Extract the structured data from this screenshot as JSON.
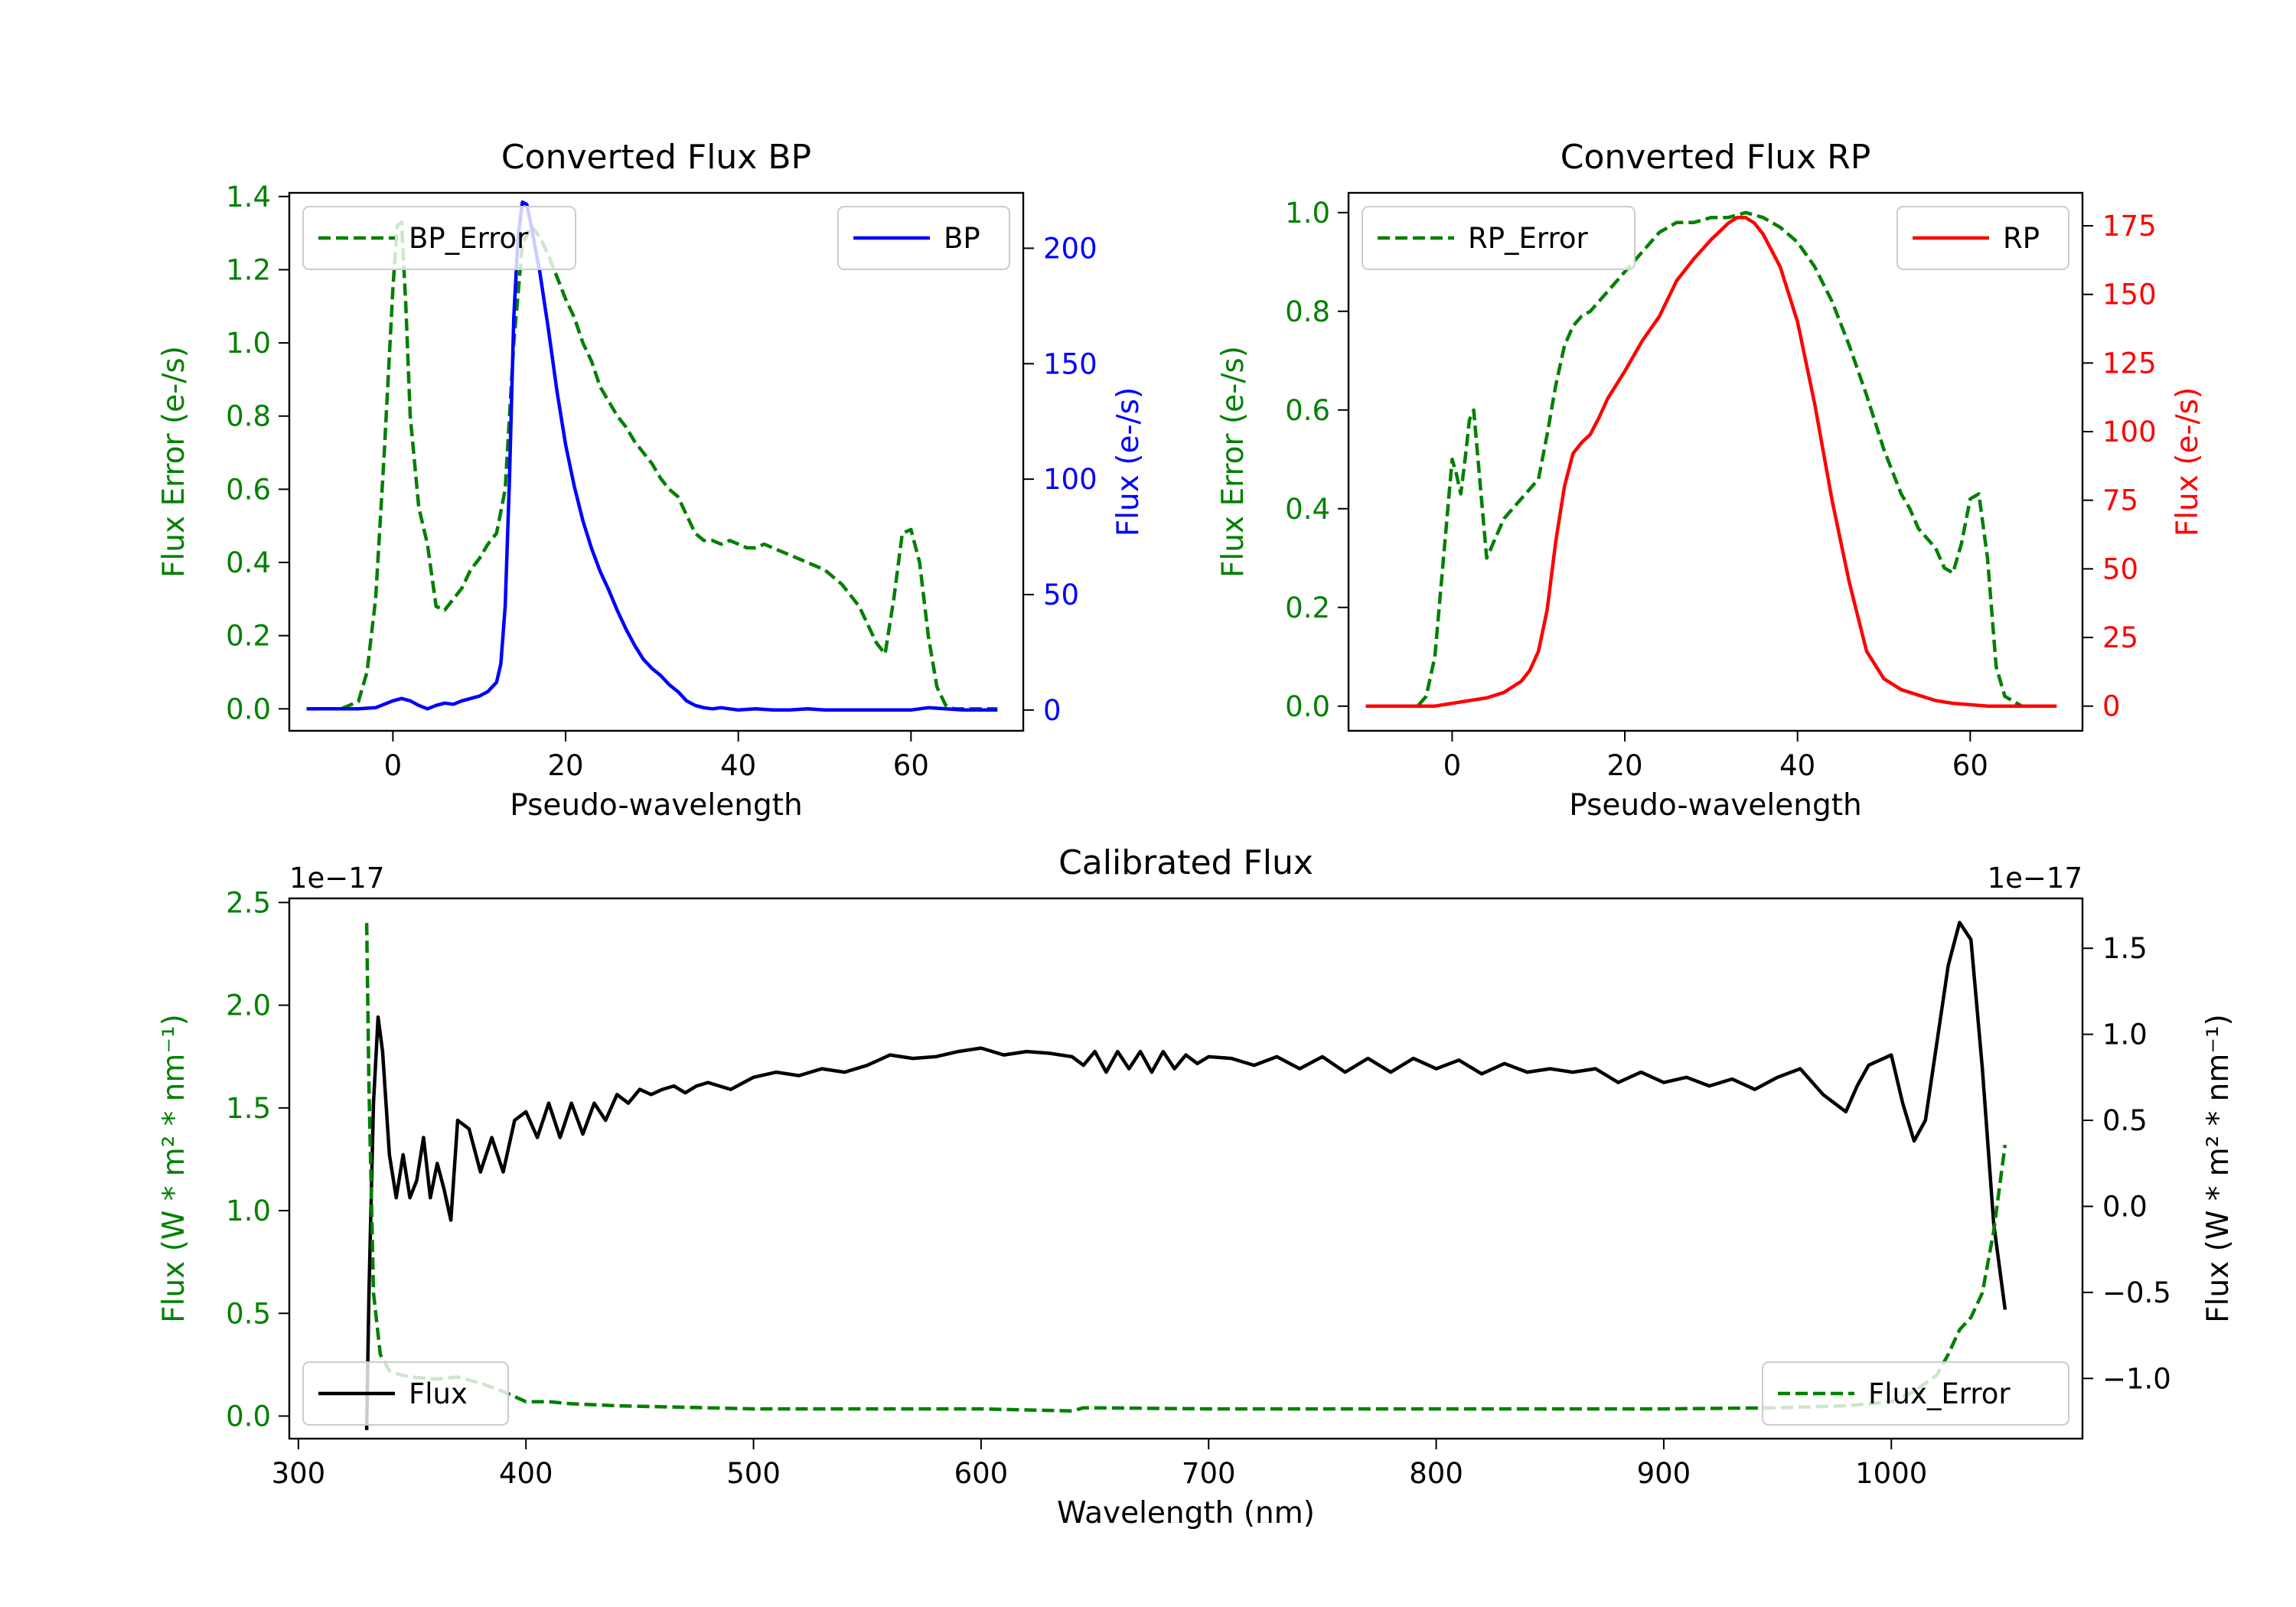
{
  "chart_data": [
    {
      "type": "line",
      "title": "Converted Flux BP",
      "xlabel": "Pseudo-wavelength",
      "xlim": [
        -12,
        73
      ],
      "x_ticks": [
        0,
        20,
        40,
        60
      ],
      "left_axis": {
        "label": "Flux Error (e-/s)",
        "color": "#008000",
        "ylim": [
          -0.06,
          1.41
        ],
        "ticks": [
          0.0,
          0.2,
          0.4,
          0.6,
          0.8,
          1.0,
          1.2,
          1.4
        ],
        "tick_labels": [
          "0.0",
          "0.2",
          "0.4",
          "0.6",
          "0.8",
          "1.0",
          "1.2",
          "1.4"
        ]
      },
      "right_axis": {
        "label": "Flux (e-/s)",
        "color": "#0000ff",
        "ylim": [
          -9,
          224
        ],
        "ticks": [
          0,
          50,
          100,
          150,
          200
        ],
        "tick_labels": [
          "0",
          "50",
          "100",
          "150",
          "200"
        ]
      },
      "series": [
        {
          "name": "BP_Error",
          "axis": "left",
          "color": "#008000",
          "dash": true,
          "legend": "top-left",
          "x": [
            -10,
            -6,
            -4,
            -3,
            -2,
            -1,
            0,
            0.5,
            1,
            1.5,
            2,
            3,
            4,
            5,
            6,
            7,
            8,
            9,
            10,
            11,
            12,
            13,
            14,
            15,
            16,
            17,
            18,
            19,
            20,
            21,
            22,
            23,
            24,
            25,
            26,
            27,
            28,
            29,
            30,
            31,
            32,
            33,
            34,
            35,
            36,
            37,
            38,
            39,
            40,
            41,
            42,
            43,
            44,
            45,
            46,
            47,
            48,
            49,
            50,
            51,
            52,
            53,
            54,
            55,
            56,
            57,
            58,
            59,
            60,
            61,
            62,
            63,
            64,
            65,
            66,
            70
          ],
          "values": [
            0.0,
            0.0,
            0.02,
            0.1,
            0.3,
            0.7,
            1.15,
            1.32,
            1.33,
            1.1,
            0.8,
            0.55,
            0.45,
            0.28,
            0.27,
            0.3,
            0.33,
            0.38,
            0.41,
            0.45,
            0.48,
            0.6,
            1.0,
            1.27,
            1.32,
            1.29,
            1.24,
            1.18,
            1.12,
            1.07,
            1.0,
            0.95,
            0.88,
            0.84,
            0.8,
            0.77,
            0.73,
            0.7,
            0.67,
            0.63,
            0.6,
            0.58,
            0.53,
            0.48,
            0.46,
            0.46,
            0.45,
            0.46,
            0.45,
            0.44,
            0.44,
            0.45,
            0.44,
            0.43,
            0.42,
            0.41,
            0.4,
            0.39,
            0.38,
            0.36,
            0.34,
            0.31,
            0.28,
            0.23,
            0.18,
            0.15,
            0.3,
            0.48,
            0.49,
            0.4,
            0.2,
            0.06,
            0.01,
            0.0,
            0.0,
            0.0
          ]
        },
        {
          "name": "BP",
          "axis": "right",
          "color": "#0000ff",
          "dash": false,
          "legend": "top-right",
          "x": [
            -10,
            -4,
            -2,
            0,
            1,
            2,
            3,
            4,
            5,
            6,
            7,
            8,
            9,
            10,
            11,
            12,
            12.5,
            13,
            13.5,
            14,
            14.5,
            15,
            15.5,
            16,
            17,
            18,
            19,
            20,
            21,
            22,
            23,
            24,
            25,
            26,
            27,
            28,
            29,
            30,
            31,
            32,
            33,
            34,
            35,
            36,
            37,
            38,
            39,
            40,
            42,
            44,
            46,
            48,
            50,
            52,
            54,
            56,
            58,
            60,
            62,
            64,
            66,
            70
          ],
          "values": [
            0.5,
            0.5,
            1,
            4,
            5,
            4,
            2,
            0.5,
            2,
            3,
            2.5,
            4,
            5,
            6,
            8,
            12,
            20,
            45,
            100,
            170,
            205,
            220,
            219,
            210,
            190,
            165,
            138,
            115,
            97,
            82,
            70,
            60,
            52,
            43,
            35,
            28,
            22,
            18,
            15,
            11,
            8,
            4,
            2,
            1,
            0.5,
            1,
            0.5,
            0,
            0.5,
            0,
            0,
            0.5,
            0,
            0,
            0,
            0,
            0,
            0,
            1,
            0.5,
            0,
            0
          ]
        }
      ]
    },
    {
      "type": "line",
      "title": "Converted Flux RP",
      "xlabel": "Pseudo-wavelength",
      "xlim": [
        -12,
        73
      ],
      "x_ticks": [
        0,
        20,
        40,
        60
      ],
      "left_axis": {
        "label": "Flux Error (e-/s)",
        "color": "#008000",
        "ylim": [
          -0.05,
          1.04
        ],
        "ticks": [
          0.0,
          0.2,
          0.4,
          0.6,
          0.8,
          1.0
        ],
        "tick_labels": [
          "0.0",
          "0.2",
          "0.4",
          "0.6",
          "0.8",
          "1.0"
        ]
      },
      "right_axis": {
        "label": "Flux (e-/s)",
        "color": "#ff0000",
        "ylim": [
          -9,
          187
        ],
        "ticks": [
          0,
          25,
          50,
          75,
          100,
          125,
          150,
          175
        ],
        "tick_labels": [
          "0",
          "25",
          "50",
          "75",
          "100",
          "125",
          "150",
          "175"
        ]
      },
      "series": [
        {
          "name": "RP_Error",
          "axis": "left",
          "color": "#008000",
          "dash": true,
          "legend": "top-left",
          "x": [
            -10,
            -5,
            -4,
            -3,
            -2,
            -1,
            0,
            0.5,
            1,
            1.5,
            2,
            2.5,
            3,
            4,
            5,
            6,
            7,
            8,
            9,
            10,
            11,
            12,
            13,
            14,
            15,
            16,
            17,
            18,
            20,
            22,
            24,
            26,
            28,
            30,
            32,
            34,
            36,
            38,
            40,
            42,
            44,
            46,
            48,
            50,
            52,
            53,
            54,
            55,
            56,
            57,
            58,
            59,
            60,
            61,
            62,
            63,
            64,
            66,
            70
          ],
          "values": [
            0.0,
            0.0,
            0.0,
            0.02,
            0.1,
            0.3,
            0.5,
            0.47,
            0.43,
            0.5,
            0.58,
            0.6,
            0.5,
            0.3,
            0.34,
            0.38,
            0.4,
            0.42,
            0.44,
            0.46,
            0.55,
            0.65,
            0.73,
            0.77,
            0.79,
            0.8,
            0.82,
            0.84,
            0.88,
            0.92,
            0.96,
            0.98,
            0.98,
            0.99,
            0.99,
            1.0,
            0.99,
            0.97,
            0.94,
            0.89,
            0.82,
            0.73,
            0.63,
            0.52,
            0.43,
            0.4,
            0.36,
            0.34,
            0.32,
            0.28,
            0.27,
            0.33,
            0.42,
            0.43,
            0.3,
            0.08,
            0.02,
            0.0,
            0.0
          ]
        },
        {
          "name": "RP",
          "axis": "right",
          "color": "#ff0000",
          "dash": false,
          "legend": "top-right",
          "x": [
            -10,
            -2,
            0,
            2,
            4,
            6,
            8,
            9,
            10,
            11,
            12,
            13,
            14,
            15,
            16,
            17,
            18,
            20,
            22,
            24,
            26,
            28,
            30,
            32,
            33,
            34,
            35,
            36,
            38,
            40,
            42,
            44,
            46,
            48,
            50,
            52,
            54,
            56,
            58,
            60,
            62,
            66,
            70
          ],
          "values": [
            0,
            0,
            1,
            2,
            3,
            5,
            9,
            13,
            20,
            35,
            60,
            80,
            92,
            96,
            99,
            105,
            112,
            122,
            133,
            142,
            155,
            163,
            170,
            176,
            178,
            178,
            176,
            172,
            160,
            140,
            110,
            75,
            45,
            20,
            10,
            6,
            4,
            2,
            1,
            0.5,
            0,
            0,
            0
          ]
        }
      ]
    },
    {
      "type": "line",
      "title": "Calibrated Flux",
      "xlabel": "Wavelength (nm)",
      "xlim": [
        296,
        1084
      ],
      "x_ticks": [
        300,
        400,
        500,
        600,
        700,
        800,
        900,
        1000
      ],
      "left_axis": {
        "label": "Flux (W * m² * nm⁻¹)",
        "color": "#008000",
        "offset_text": "1e−17",
        "ylim": [
          -0.11,
          2.52
        ],
        "ticks": [
          0.0,
          0.5,
          1.0,
          1.5,
          2.0,
          2.5
        ],
        "tick_labels": [
          "0.0",
          "0.5",
          "1.0",
          "1.5",
          "2.0",
          "2.5"
        ]
      },
      "right_axis": {
        "label": "Flux (W * m² * nm⁻¹)",
        "color": "#000000",
        "offset_text": "1e−17",
        "ylim": [
          -1.35,
          1.79
        ],
        "ticks": [
          -1.0,
          -0.5,
          0.0,
          0.5,
          1.0,
          1.5
        ],
        "tick_labels": [
          "−1.0",
          "−0.5",
          "0.0",
          "0.5",
          "1.0",
          "1.5"
        ]
      },
      "series": [
        {
          "name": "Flux",
          "axis": "right",
          "color": "#000000",
          "dash": false,
          "legend": "bottom-left",
          "x": [
            330,
            331,
            333,
            335,
            337,
            340,
            343,
            346,
            349,
            352,
            355,
            358,
            361,
            364,
            367,
            370,
            375,
            380,
            385,
            390,
            395,
            400,
            405,
            410,
            415,
            420,
            425,
            430,
            435,
            440,
            445,
            450,
            455,
            460,
            465,
            470,
            475,
            480,
            490,
            500,
            510,
            520,
            530,
            540,
            550,
            560,
            570,
            580,
            590,
            600,
            610,
            620,
            630,
            640,
            645,
            650,
            655,
            660,
            665,
            670,
            675,
            680,
            685,
            690,
            695,
            700,
            710,
            720,
            730,
            740,
            750,
            760,
            770,
            780,
            790,
            800,
            810,
            820,
            830,
            840,
            850,
            860,
            870,
            880,
            890,
            900,
            910,
            920,
            930,
            940,
            950,
            960,
            970,
            980,
            985,
            990,
            1000,
            1005,
            1010,
            1015,
            1020,
            1025,
            1030,
            1035,
            1040,
            1045,
            1050
          ],
          "values": [
            -1.3,
            -0.5,
            0.6,
            1.1,
            0.9,
            0.3,
            0.05,
            0.3,
            0.05,
            0.15,
            0.4,
            0.05,
            0.25,
            0.1,
            -0.08,
            0.5,
            0.45,
            0.2,
            0.4,
            0.2,
            0.5,
            0.55,
            0.4,
            0.6,
            0.4,
            0.6,
            0.42,
            0.6,
            0.5,
            0.65,
            0.6,
            0.68,
            0.65,
            0.68,
            0.7,
            0.66,
            0.7,
            0.72,
            0.68,
            0.75,
            0.78,
            0.76,
            0.8,
            0.78,
            0.82,
            0.88,
            0.86,
            0.87,
            0.9,
            0.92,
            0.88,
            0.9,
            0.89,
            0.87,
            0.82,
            0.9,
            0.78,
            0.9,
            0.8,
            0.9,
            0.78,
            0.9,
            0.8,
            0.88,
            0.83,
            0.87,
            0.86,
            0.82,
            0.87,
            0.8,
            0.87,
            0.78,
            0.86,
            0.78,
            0.86,
            0.8,
            0.85,
            0.77,
            0.83,
            0.78,
            0.8,
            0.78,
            0.8,
            0.72,
            0.78,
            0.72,
            0.75,
            0.7,
            0.74,
            0.68,
            0.75,
            0.8,
            0.65,
            0.55,
            0.7,
            0.82,
            0.88,
            0.6,
            0.38,
            0.5,
            0.95,
            1.4,
            1.65,
            1.55,
            0.8,
            -0.1,
            -0.6
          ]
        },
        {
          "name": "Flux_Error",
          "axis": "left",
          "color": "#008000",
          "dash": true,
          "legend": "bottom-right",
          "x": [
            330,
            331,
            333,
            336,
            340,
            345,
            350,
            360,
            370,
            380,
            390,
            400,
            410,
            420,
            440,
            460,
            480,
            500,
            550,
            600,
            640,
            645,
            650,
            700,
            750,
            800,
            850,
            900,
            950,
            980,
            1000,
            1010,
            1020,
            1025,
            1030,
            1035,
            1040,
            1045,
            1050
          ],
          "values": [
            2.4,
            1.6,
            0.6,
            0.3,
            0.22,
            0.2,
            0.19,
            0.18,
            0.19,
            0.16,
            0.12,
            0.07,
            0.07,
            0.06,
            0.05,
            0.045,
            0.04,
            0.035,
            0.035,
            0.035,
            0.025,
            0.04,
            0.04,
            0.035,
            0.035,
            0.035,
            0.035,
            0.035,
            0.04,
            0.05,
            0.07,
            0.12,
            0.2,
            0.3,
            0.42,
            0.48,
            0.6,
            0.9,
            1.32
          ]
        }
      ]
    }
  ]
}
